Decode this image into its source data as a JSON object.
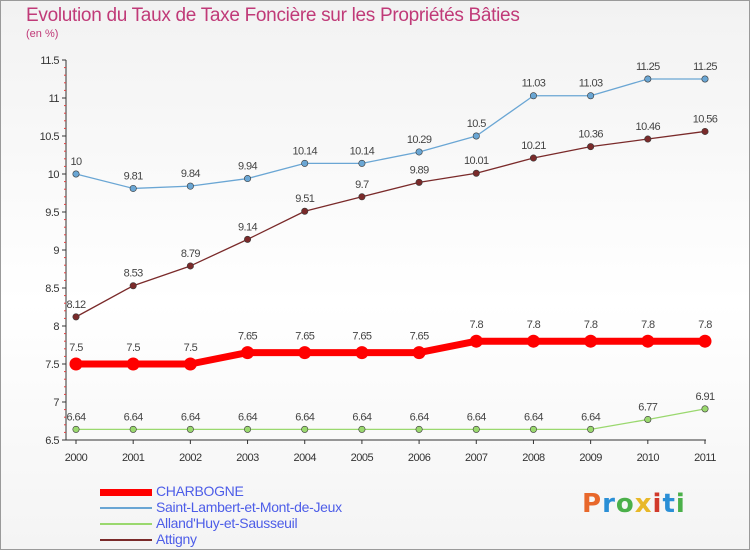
{
  "header": {
    "title": "Evolution du Taux de Taxe Foncière sur les Propriétés Bâties",
    "unit": "(en %)"
  },
  "logo": {
    "text": "Proxiti",
    "colors": [
      "#e8682b",
      "#2a8fd6",
      "#4bb04a",
      "#e8b828",
      "#d1392b",
      "#2a8fd6",
      "#4bb04a"
    ]
  },
  "chart_data": {
    "type": "line",
    "title": "Evolution du Taux de Taxe Foncière sur les Propriétés Bâties",
    "ylabel": "(en %)",
    "xlabel": "",
    "x": [
      "2000",
      "2001",
      "2002",
      "2003",
      "2004",
      "2005",
      "2006",
      "2007",
      "2008",
      "2009",
      "2010",
      "2011"
    ],
    "ylim": [
      6.5,
      11.5
    ],
    "yticks": [
      "6.5",
      "7",
      "7.5",
      "8",
      "8.5",
      "9",
      "9.5",
      "10",
      "10.5",
      "11",
      "11.5"
    ],
    "grid": false,
    "legend_position": "bottom-left",
    "series": [
      {
        "name": "CHARBOGNE",
        "color": "#ff0000",
        "values": [
          7.5,
          7.5,
          7.5,
          7.65,
          7.65,
          7.65,
          7.65,
          7.8,
          7.8,
          7.8,
          7.8,
          7.8
        ],
        "labels": [
          "7.5",
          "7.5",
          "7.5",
          "7.65",
          "7.65",
          "7.65",
          "7.65",
          "7.8",
          "7.8",
          "7.8",
          "7.8",
          "7.8"
        ]
      },
      {
        "name": "Saint-Lambert-et-Mont-de-Jeux",
        "color": "#6aa6d4",
        "values": [
          10,
          9.81,
          9.84,
          9.94,
          10.14,
          10.14,
          10.29,
          10.5,
          11.03,
          11.03,
          11.25,
          11.25
        ],
        "labels": [
          "10",
          "9.81",
          "9.84",
          "9.94",
          "10.14",
          "10.14",
          "10.29",
          "10.5",
          "11.03",
          "11.03",
          "11.25",
          "11.25"
        ]
      },
      {
        "name": "Alland'Huy-et-Sausseuil",
        "color": "#9ad86e",
        "values": [
          6.64,
          6.64,
          6.64,
          6.64,
          6.64,
          6.64,
          6.64,
          6.64,
          6.64,
          6.64,
          6.77,
          6.91
        ],
        "labels": [
          "6.64",
          "6.64",
          "6.64",
          "6.64",
          "6.64",
          "6.64",
          "6.64",
          "6.64",
          "6.64",
          "6.64",
          "6.77",
          "6.91"
        ]
      },
      {
        "name": "Attigny",
        "color": "#7a2a2a",
        "values": [
          8.12,
          8.53,
          8.79,
          9.14,
          9.51,
          9.7,
          9.89,
          10.01,
          10.21,
          10.36,
          10.46,
          10.56
        ],
        "labels": [
          "8.12",
          "8.53",
          "8.79",
          "9.14",
          "9.51",
          "9.7",
          "9.89",
          "10.01",
          "10.21",
          "10.36",
          "10.46",
          "10.56"
        ]
      }
    ]
  }
}
